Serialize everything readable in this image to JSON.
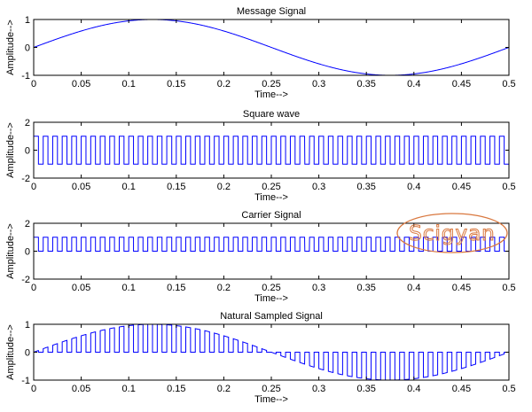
{
  "watermark": {
    "text": "Scigyan",
    "color": "#d9783f"
  },
  "colors": {
    "line": "#0000ff",
    "axes": "#000000",
    "background": "#ffffff"
  },
  "chart_data": [
    {
      "type": "line",
      "title": "Message Signal",
      "xlabel": "Time-->",
      "ylabel": "Amplitude-->",
      "xlim": [
        0,
        0.5
      ],
      "ylim": [
        -1,
        1
      ],
      "xticks": [
        "0",
        "0.05",
        "0.1",
        "0.15",
        "0.2",
        "0.25",
        "0.3",
        "0.35",
        "0.4",
        "0.45",
        "0.5"
      ],
      "yticks": [
        "-1",
        "0",
        "1"
      ],
      "grid": false,
      "series": [
        {
          "signal": "sine",
          "amplitude": 1,
          "frequency_hz": 2,
          "x_start": 0,
          "x_end": 0.5
        }
      ]
    },
    {
      "type": "line",
      "title": "Square wave",
      "xlabel": "Time-->",
      "ylabel": "Amplitude-->",
      "xlim": [
        0,
        0.5
      ],
      "ylim": [
        -2,
        2
      ],
      "xticks": [
        "0",
        "0.05",
        "0.1",
        "0.15",
        "0.2",
        "0.25",
        "0.3",
        "0.35",
        "0.4",
        "0.45",
        "0.5"
      ],
      "yticks": [
        "-2",
        "0",
        "2"
      ],
      "grid": false,
      "series": [
        {
          "signal": "square",
          "amplitude": 1,
          "frequency_hz": 100,
          "duty": 0.5,
          "x_start": 0,
          "x_end": 0.5
        }
      ]
    },
    {
      "type": "line",
      "title": "Carrier Signal",
      "xlabel": "Time-->",
      "ylabel": "Amplitude-->",
      "xlim": [
        0,
        0.5
      ],
      "ylim": [
        -2,
        2
      ],
      "xticks": [
        "0",
        "0.05",
        "0.1",
        "0.15",
        "0.2",
        "0.25",
        "0.3",
        "0.35",
        "0.4",
        "0.45",
        "0.5"
      ],
      "yticks": [
        "-2",
        "0",
        "2"
      ],
      "grid": false,
      "series": [
        {
          "signal": "pulse",
          "high": 1,
          "low": 0,
          "frequency_hz": 100,
          "duty": 0.5,
          "x_start": 0,
          "x_end": 0.5
        }
      ]
    },
    {
      "type": "line",
      "title": "Natural Sampled Signal",
      "xlabel": "Time-->",
      "ylabel": "Amplitude-->",
      "xlim": [
        0,
        0.5
      ],
      "ylim": [
        -1,
        1
      ],
      "xticks": [
        "0",
        "0.05",
        "0.1",
        "0.15",
        "0.2",
        "0.25",
        "0.3",
        "0.35",
        "0.4",
        "0.45",
        "0.5"
      ],
      "yticks": [
        "-1",
        "0",
        "1"
      ],
      "grid": false,
      "series": [
        {
          "signal": "natural_sampled",
          "message_frequency_hz": 2,
          "carrier_frequency_hz": 100,
          "duty": 0.5,
          "x_start": 0,
          "x_end": 0.5
        }
      ]
    }
  ]
}
